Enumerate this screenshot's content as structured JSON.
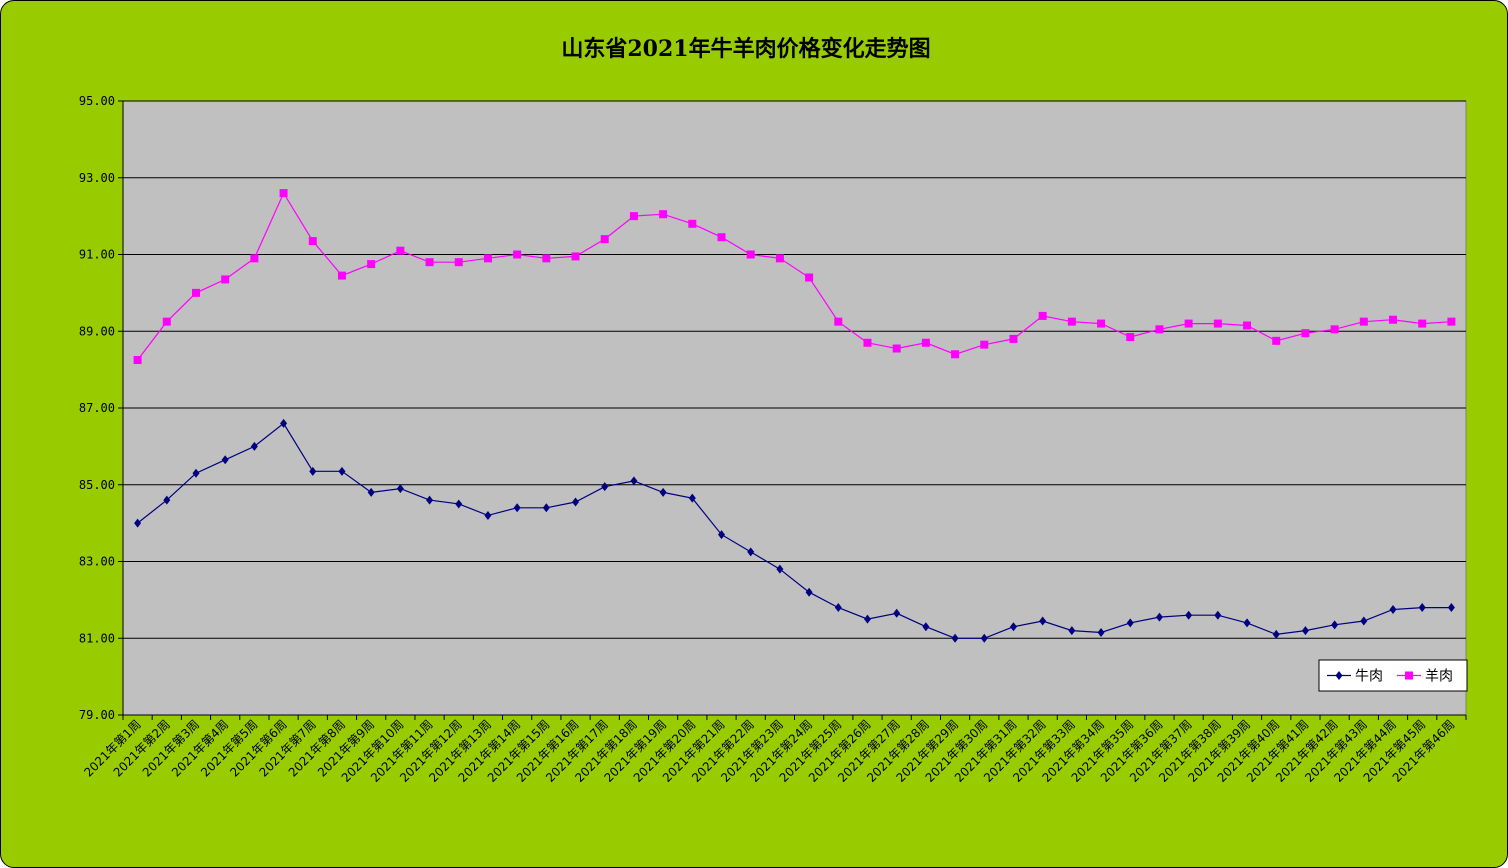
{
  "chart_data": {
    "type": "line",
    "title": "山东省2021年牛羊肉价格变化走势图",
    "xlabel": "",
    "ylabel": "",
    "ylim": [
      79,
      95
    ],
    "y_ticks": [
      "79.00",
      "81.00",
      "83.00",
      "85.00",
      "87.00",
      "89.00",
      "91.00",
      "93.00",
      "95.00"
    ],
    "grid": "horizontal",
    "legend_position": "right",
    "categories": [
      "2021年第1周",
      "2021年第2周",
      "2021年第3周",
      "2021年第4周",
      "2021年第5周",
      "2021年第6周",
      "2021年第7周",
      "2021年第8周",
      "2021年第9周",
      "2021年第10周",
      "2021年第11周",
      "2021年第12周",
      "2021年第13周",
      "2021年第14周",
      "2021年第15周",
      "2021年第16周",
      "2021年第17周",
      "2021年第18周",
      "2021年第19周",
      "2021年第20周",
      "2021年第21周",
      "2021年第22周",
      "2021年第23周",
      "2021年第24周",
      "2021年第25周",
      "2021年第26周",
      "2021年第27周",
      "2021年第28周",
      "2021年第29周",
      "2021年第30周",
      "2021年第31周",
      "2021年第32周",
      "2021年第33周",
      "2021年第34周",
      "2021年第35周",
      "2021年第36周",
      "2021年第37周",
      "2021年第38周",
      "2021年第39周",
      "2021年第40周",
      "2021年第41周",
      "2021年第42周",
      "2021年第43周",
      "2021年第44周",
      "2021年第45周",
      "2021年第46周"
    ],
    "series": [
      {
        "name": "牛肉",
        "color": "#000080",
        "marker": "diamond",
        "values": [
          84.0,
          84.6,
          85.3,
          85.65,
          86.0,
          86.6,
          85.35,
          85.35,
          84.8,
          84.9,
          84.6,
          84.5,
          84.2,
          84.4,
          84.4,
          84.55,
          84.95,
          85.1,
          84.8,
          84.65,
          83.7,
          83.25,
          82.8,
          82.2,
          81.8,
          81.5,
          81.65,
          81.3,
          81.0,
          81.0,
          81.3,
          81.45,
          81.2,
          81.15,
          81.4,
          81.55,
          81.6,
          81.6,
          81.4,
          81.1,
          81.2,
          81.35,
          81.45,
          81.75,
          81.8,
          81.8
        ]
      },
      {
        "name": "羊肉",
        "color": "#ff00ff",
        "marker": "square",
        "values": [
          88.25,
          89.25,
          90.0,
          90.35,
          90.9,
          92.6,
          91.35,
          90.45,
          90.75,
          91.1,
          90.8,
          90.8,
          90.9,
          91.0,
          90.9,
          90.95,
          91.4,
          92.0,
          92.05,
          91.8,
          91.45,
          91.0,
          90.9,
          90.4,
          89.25,
          88.7,
          88.55,
          88.7,
          88.4,
          88.65,
          88.8,
          89.4,
          89.25,
          89.2,
          88.85,
          89.05,
          89.2,
          89.2,
          89.15,
          88.75,
          88.95,
          89.05,
          89.25,
          89.3,
          89.2,
          89.25
        ]
      }
    ]
  }
}
